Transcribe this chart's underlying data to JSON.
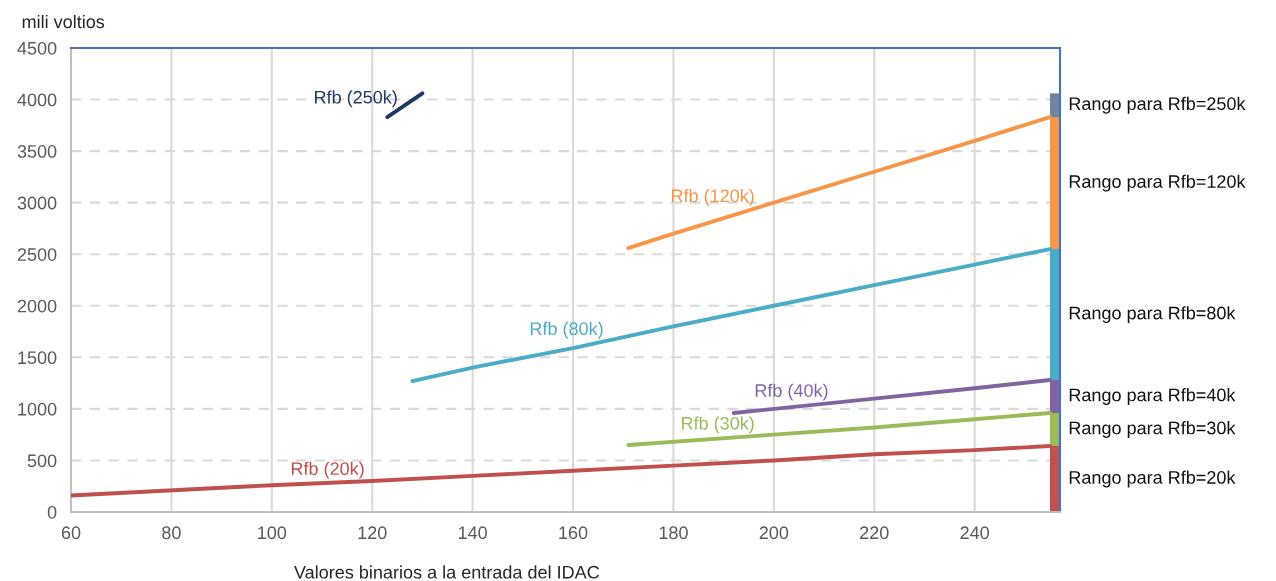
{
  "chart_data": {
    "type": "line",
    "xlabel": "Valores binarios a la entrada del IDAC",
    "ylabel": "mili voltios",
    "xlim": [
      60,
      257
    ],
    "xticks": [
      60,
      80,
      100,
      120,
      140,
      160,
      180,
      200,
      220,
      240
    ],
    "ylim": [
      0,
      4500
    ],
    "yticks": [
      0,
      500,
      1000,
      1500,
      2000,
      2500,
      3000,
      3500,
      4000,
      4500
    ],
    "grid": true,
    "stacked": true,
    "legend": false,
    "marker": "none",
    "line_style": "solid",
    "series": [
      {
        "name": "Rfb (20k)",
        "color": "#c0504d",
        "x": [
          60,
          100,
          120,
          140,
          160,
          180,
          200,
          220,
          240,
          255
        ],
        "values": [
          160,
          260,
          300,
          350,
          400,
          450,
          500,
          560,
          600,
          640
        ]
      },
      {
        "name": "Rfb (30k)",
        "color": "#9bbb59",
        "x": [
          171,
          200,
          220,
          240,
          255
        ],
        "values": [
          650,
          750,
          820,
          900,
          960
        ]
      },
      {
        "name": "Rfb (40k)",
        "color": "#8064a2",
        "x": [
          192,
          220,
          240,
          255
        ],
        "values": [
          960,
          1100,
          1200,
          1280
        ]
      },
      {
        "name": "Rfb (80k)",
        "color": "#4bacc6",
        "x": [
          128,
          140,
          160,
          180,
          200,
          220,
          240,
          255
        ],
        "values": [
          1270,
          1400,
          1590,
          1800,
          2000,
          2200,
          2400,
          2550
        ]
      },
      {
        "name": "Rfb (120k)",
        "color": "#f79646",
        "x": [
          171,
          180,
          200,
          220,
          240,
          255
        ],
        "values": [
          2560,
          2700,
          3000,
          3300,
          3600,
          3830
        ]
      },
      {
        "name": "Rfb (250k)",
        "color": "#1f3864",
        "x": [
          123,
          130
        ],
        "values": [
          3830,
          4060
        ]
      },
      {
        "type": "bar",
        "name": "Rango para Rfb=20k",
        "color": "#c0504d",
        "x": [
          256
        ],
        "values": [
          640
        ]
      },
      {
        "type": "bar",
        "name": "Rango para Rfb=30k",
        "color": "#9bbb59",
        "x": [
          256
        ],
        "values": [
          320
        ]
      },
      {
        "type": "bar",
        "name": "Rango para Rfb=40k",
        "color": "#8064a2",
        "x": [
          256
        ],
        "values": [
          320
        ]
      },
      {
        "type": "bar",
        "name": "Rango para Rfb=80k",
        "color": "#4bacc6",
        "x": [
          256
        ],
        "values": [
          1270
        ]
      },
      {
        "type": "bar",
        "name": "Rango para Rfb=120k",
        "color": "#f79646",
        "x": [
          256
        ],
        "values": [
          1280
        ]
      },
      {
        "type": "bar",
        "name": "Rango para Rfb=250k",
        "color": "#71839d",
        "x": [
          256
        ],
        "values": [
          230
        ]
      }
    ]
  }
}
